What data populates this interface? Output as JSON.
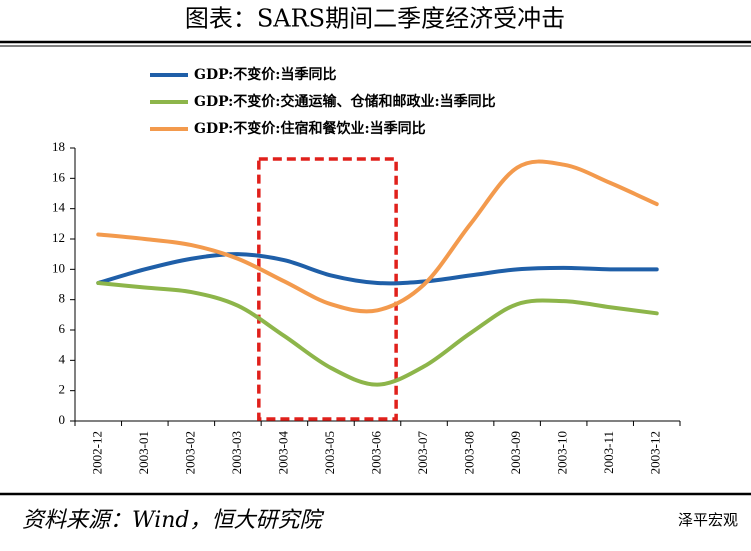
{
  "header": {
    "title": "图表：SARS期间二季度经济受冲击"
  },
  "chart_data": {
    "type": "line",
    "categories": [
      "2002-12",
      "2003-01",
      "2003-02",
      "2003-03",
      "2003-04",
      "2003-05",
      "2003-06",
      "2003-07",
      "2003-08",
      "2003-09",
      "2003-10",
      "2003-11",
      "2003-12"
    ],
    "series": [
      {
        "name": "GDP:不变价:当季同比",
        "color": "#1f5fa8",
        "values": [
          9.1,
          10.0,
          10.7,
          11.0,
          10.6,
          9.6,
          9.1,
          9.2,
          9.6,
          10.0,
          10.1,
          10.0,
          10.0
        ]
      },
      {
        "name": "GDP:不变价:交通运输、仓储和邮政业:当季同比",
        "color": "#8db54a",
        "values": [
          9.1,
          8.8,
          8.5,
          7.6,
          5.6,
          3.5,
          2.4,
          3.6,
          5.8,
          7.7,
          7.9,
          7.5,
          7.1
        ]
      },
      {
        "name": "GDP:不变价:住宿和餐饮业:当季同比",
        "color": "#f39a4d",
        "values": [
          12.3,
          12.0,
          11.6,
          10.7,
          9.2,
          7.7,
          7.3,
          9.0,
          13.0,
          16.7,
          16.9,
          15.7,
          14.3
        ]
      }
    ],
    "ylim": [
      0,
      18
    ],
    "yticks": [
      0,
      2,
      4,
      6,
      8,
      10,
      12,
      14,
      16,
      18
    ],
    "grid": false
  },
  "footer": {
    "source": "资料来源：Wind，恒大研究院",
    "watermark": "泽平宏观"
  }
}
